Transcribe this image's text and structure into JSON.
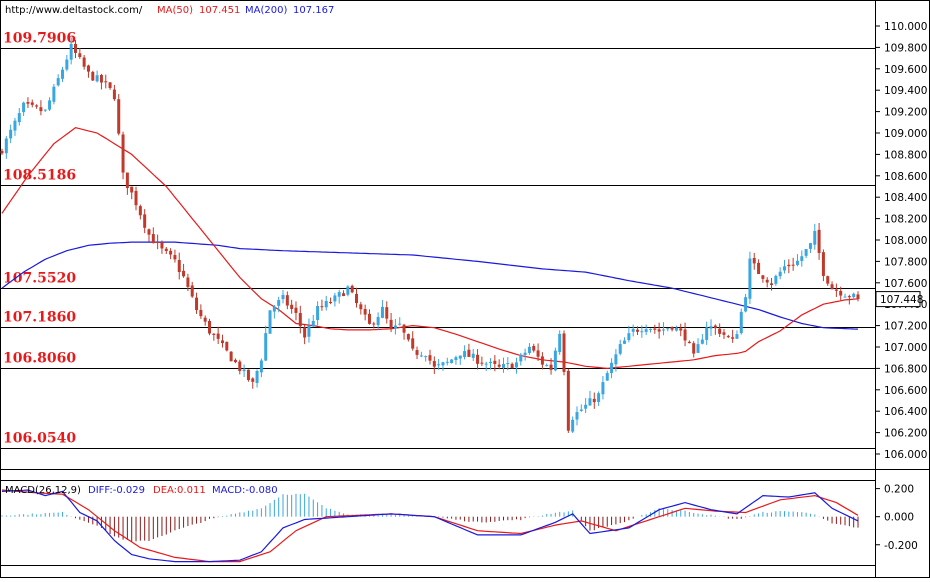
{
  "header": {
    "url": "http://www.deltastock.com/",
    "ma50_label": "MA(50)",
    "ma50_value": "107.451",
    "ma200_label": "MA(200)",
    "ma200_value": "107.167"
  },
  "colors": {
    "up_candle": "#3aa6e0",
    "down_candle": "#c0392b",
    "ma50": "#e8191a",
    "ma200": "#1a1adc",
    "level_text": "#e8191a",
    "diff_line": "#1a1adc",
    "dea_line": "#e8191a",
    "macd_hist_pos": "#3aa6e0",
    "macd_hist_neg": "#8b1a1a"
  },
  "price_panel": {
    "current_price": "107.448",
    "y_ticks": [
      "110.000",
      "109.800",
      "109.600",
      "109.400",
      "109.200",
      "109.000",
      "108.800",
      "108.600",
      "108.400",
      "108.200",
      "108.000",
      "107.800",
      "107.600",
      "107.400",
      "107.200",
      "107.000",
      "106.800",
      "106.600",
      "106.400",
      "106.200",
      "106.000"
    ],
    "levels": [
      "109.7906",
      "108.5186",
      "107.5520",
      "107.1860",
      "106.8060",
      "106.0540"
    ]
  },
  "macd_panel": {
    "title": "MACD(26,12,9)",
    "diff_label": "DIFF:-0.029",
    "dea_label": "DEA:0.011",
    "macd_label": "MACD:-0.080",
    "y_ticks": [
      "0.200",
      "0.000",
      "-0.200"
    ]
  },
  "chart_data": {
    "type": "candlestick",
    "y_range": [
      105.98,
      110.08
    ],
    "y_tick_values": [
      110.0,
      109.8,
      109.6,
      109.4,
      109.2,
      109.0,
      108.8,
      108.6,
      108.4,
      108.2,
      108.0,
      107.8,
      107.6,
      107.4,
      107.2,
      107.0,
      106.8,
      106.6,
      106.4,
      106.2,
      106.0
    ],
    "horizontal_levels": [
      109.7906,
      108.5186,
      107.552,
      107.186,
      106.806,
      106.054
    ],
    "last_price": 107.448,
    "close_path": [
      [
        0,
        108.85
      ],
      [
        5,
        109.25
      ],
      [
        10,
        109.2
      ],
      [
        14,
        109.6
      ],
      [
        16,
        109.8
      ],
      [
        20,
        109.55
      ],
      [
        24,
        109.45
      ],
      [
        26,
        109.35
      ],
      [
        28,
        108.6
      ],
      [
        31,
        108.35
      ],
      [
        34,
        108.05
      ],
      [
        37,
        107.9
      ],
      [
        40,
        107.8
      ],
      [
        42,
        107.65
      ],
      [
        45,
        107.35
      ],
      [
        48,
        107.15
      ],
      [
        52,
        106.95
      ],
      [
        56,
        106.75
      ],
      [
        58,
        106.65
      ],
      [
        60,
        106.9
      ],
      [
        62,
        107.35
      ],
      [
        65,
        107.45
      ],
      [
        68,
        107.3
      ],
      [
        70,
        107.1
      ],
      [
        73,
        107.35
      ],
      [
        77,
        107.45
      ],
      [
        80,
        107.55
      ],
      [
        82,
        107.4
      ],
      [
        85,
        107.2
      ],
      [
        88,
        107.35
      ],
      [
        90,
        107.15
      ],
      [
        92,
        107.2
      ],
      [
        95,
        106.95
      ],
      [
        98,
        106.95
      ],
      [
        100,
        106.8
      ],
      [
        103,
        106.85
      ],
      [
        106,
        106.95
      ],
      [
        110,
        106.88
      ],
      [
        115,
        106.8
      ],
      [
        119,
        106.85
      ],
      [
        122,
        107.0
      ],
      [
        125,
        106.85
      ],
      [
        127,
        106.8
      ],
      [
        129,
        107.15
      ],
      [
        130,
        106.8
      ],
      [
        131,
        106.25
      ],
      [
        132,
        106.35
      ],
      [
        135,
        106.45
      ],
      [
        138,
        106.55
      ],
      [
        140,
        106.75
      ],
      [
        143,
        107.0
      ],
      [
        146,
        107.15
      ],
      [
        149,
        107.2
      ],
      [
        152,
        107.15
      ],
      [
        155,
        107.2
      ],
      [
        158,
        107.1
      ],
      [
        160,
        106.9
      ],
      [
        163,
        107.2
      ],
      [
        166,
        107.15
      ],
      [
        169,
        107.05
      ],
      [
        170,
        107.15
      ],
      [
        172,
        107.5
      ],
      [
        173,
        107.8
      ],
      [
        175,
        107.7
      ],
      [
        178,
        107.6
      ],
      [
        181,
        107.75
      ],
      [
        184,
        107.8
      ],
      [
        187,
        107.95
      ],
      [
        188,
        108.05
      ],
      [
        190,
        107.7
      ],
      [
        192,
        107.55
      ],
      [
        195,
        107.5
      ],
      [
        198,
        107.45
      ]
    ],
    "ma50_series": [
      [
        0,
        108.25
      ],
      [
        6,
        108.6
      ],
      [
        12,
        108.9
      ],
      [
        17,
        109.05
      ],
      [
        22,
        109.0
      ],
      [
        30,
        108.8
      ],
      [
        38,
        108.5
      ],
      [
        45,
        108.15
      ],
      [
        50,
        107.9
      ],
      [
        55,
        107.65
      ],
      [
        60,
        107.45
      ],
      [
        64,
        107.35
      ],
      [
        68,
        107.22
      ],
      [
        72,
        107.2
      ],
      [
        76,
        107.17
      ],
      [
        80,
        107.16
      ],
      [
        85,
        107.16
      ],
      [
        90,
        107.17
      ],
      [
        95,
        107.2
      ],
      [
        100,
        107.18
      ],
      [
        105,
        107.12
      ],
      [
        110,
        107.05
      ],
      [
        115,
        106.98
      ],
      [
        120,
        106.92
      ],
      [
        125,
        106.88
      ],
      [
        130,
        106.86
      ],
      [
        135,
        106.82
      ],
      [
        140,
        106.8
      ],
      [
        145,
        106.82
      ],
      [
        150,
        106.84
      ],
      [
        155,
        106.86
      ],
      [
        160,
        106.88
      ],
      [
        165,
        106.92
      ],
      [
        170,
        106.94
      ],
      [
        172,
        106.96
      ],
      [
        175,
        107.05
      ],
      [
        180,
        107.15
      ],
      [
        185,
        107.3
      ],
      [
        190,
        107.4
      ],
      [
        195,
        107.44
      ],
      [
        198,
        107.45
      ]
    ],
    "ma200_series": [
      [
        0,
        107.55
      ],
      [
        5,
        107.7
      ],
      [
        10,
        107.82
      ],
      [
        15,
        107.9
      ],
      [
        20,
        107.95
      ],
      [
        25,
        107.97
      ],
      [
        30,
        107.98
      ],
      [
        40,
        107.98
      ],
      [
        50,
        107.95
      ],
      [
        55,
        107.92
      ],
      [
        65,
        107.9
      ],
      [
        80,
        107.88
      ],
      [
        95,
        107.86
      ],
      [
        110,
        107.8
      ],
      [
        125,
        107.73
      ],
      [
        135,
        107.7
      ],
      [
        145,
        107.62
      ],
      [
        155,
        107.55
      ],
      [
        165,
        107.45
      ],
      [
        175,
        107.35
      ],
      [
        180,
        107.28
      ],
      [
        185,
        107.22
      ],
      [
        190,
        107.18
      ],
      [
        198,
        107.167
      ]
    ],
    "macd": {
      "y_range": [
        -0.33,
        0.24
      ],
      "diff_series": [
        [
          0,
          0.18
        ],
        [
          6,
          0.19
        ],
        [
          10,
          0.15
        ],
        [
          14,
          0.18
        ],
        [
          18,
          0.03
        ],
        [
          22,
          -0.03
        ],
        [
          26,
          -0.17
        ],
        [
          30,
          -0.27
        ],
        [
          34,
          -0.3
        ],
        [
          40,
          -0.32
        ],
        [
          48,
          -0.32
        ],
        [
          55,
          -0.31
        ],
        [
          60,
          -0.25
        ],
        [
          65,
          -0.08
        ],
        [
          70,
          -0.02
        ],
        [
          80,
          0.0
        ],
        [
          90,
          0.02
        ],
        [
          100,
          0.0
        ],
        [
          110,
          -0.13
        ],
        [
          120,
          -0.13
        ],
        [
          128,
          -0.04
        ],
        [
          132,
          0.02
        ],
        [
          136,
          -0.12
        ],
        [
          145,
          -0.08
        ],
        [
          152,
          0.05
        ],
        [
          158,
          0.1
        ],
        [
          164,
          0.05
        ],
        [
          170,
          0.02
        ],
        [
          176,
          0.15
        ],
        [
          182,
          0.14
        ],
        [
          188,
          0.17
        ],
        [
          192,
          0.06
        ],
        [
          198,
          -0.03
        ]
      ],
      "dea_series": [
        [
          0,
          0.19
        ],
        [
          8,
          0.17
        ],
        [
          14,
          0.16
        ],
        [
          20,
          0.05
        ],
        [
          26,
          -0.1
        ],
        [
          32,
          -0.22
        ],
        [
          40,
          -0.29
        ],
        [
          48,
          -0.32
        ],
        [
          55,
          -0.32
        ],
        [
          62,
          -0.25
        ],
        [
          68,
          -0.1
        ],
        [
          75,
          0.0
        ],
        [
          90,
          0.02
        ],
        [
          100,
          0.0
        ],
        [
          110,
          -0.1
        ],
        [
          120,
          -0.12
        ],
        [
          128,
          -0.06
        ],
        [
          134,
          -0.03
        ],
        [
          142,
          -0.1
        ],
        [
          150,
          -0.02
        ],
        [
          158,
          0.06
        ],
        [
          165,
          0.04
        ],
        [
          172,
          0.03
        ],
        [
          180,
          0.12
        ],
        [
          188,
          0.15
        ],
        [
          193,
          0.1
        ],
        [
          198,
          0.01
        ]
      ],
      "hist_series": [
        [
          0,
          0.01
        ],
        [
          8,
          0.02
        ],
        [
          14,
          0.03
        ],
        [
          18,
          -0.02
        ],
        [
          22,
          -0.06
        ],
        [
          26,
          -0.14
        ],
        [
          30,
          -0.18
        ],
        [
          34,
          -0.17
        ],
        [
          40,
          -0.1
        ],
        [
          48,
          -0.02
        ],
        [
          55,
          0.03
        ],
        [
          60,
          0.06
        ],
        [
          65,
          0.16
        ],
        [
          70,
          0.16
        ],
        [
          75,
          0.06
        ],
        [
          80,
          0.02
        ],
        [
          90,
          0.01
        ],
        [
          100,
          0.0
        ],
        [
          110,
          -0.04
        ],
        [
          120,
          -0.02
        ],
        [
          128,
          0.03
        ],
        [
          132,
          0.04
        ],
        [
          136,
          -0.1
        ],
        [
          145,
          -0.03
        ],
        [
          152,
          0.06
        ],
        [
          158,
          0.04
        ],
        [
          164,
          0.01
        ],
        [
          170,
          -0.02
        ],
        [
          176,
          0.03
        ],
        [
          182,
          0.04
        ],
        [
          188,
          0.02
        ],
        [
          192,
          -0.05
        ],
        [
          198,
          -0.08
        ]
      ]
    }
  }
}
